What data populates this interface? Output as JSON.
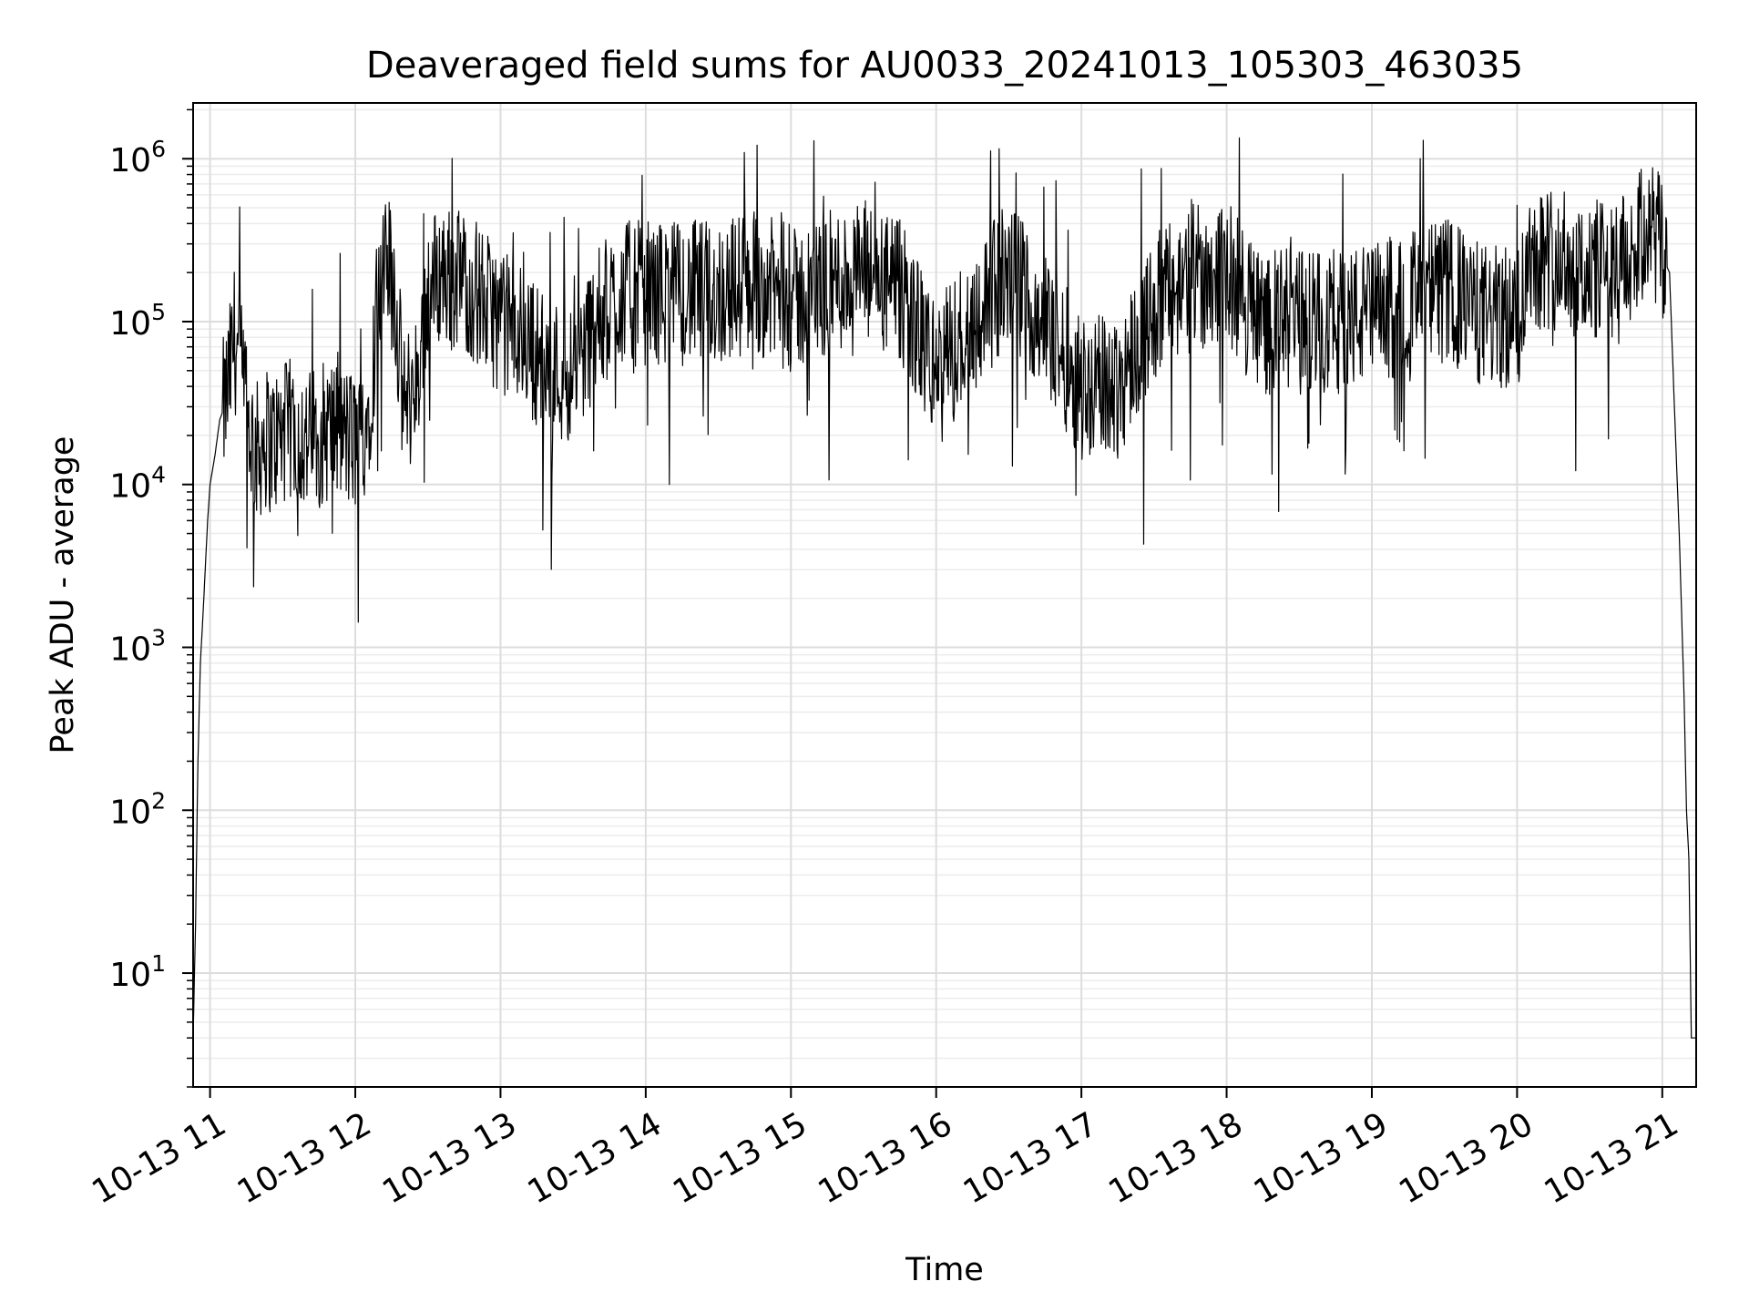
{
  "chart_data": {
    "type": "line",
    "title": "Deaveraged field sums for AU0033_20241013_105303_463035",
    "xlabel": "Time",
    "ylabel": "Peak ADU - average",
    "yscale": "log",
    "ylim": [
      2.0,
      2200000
    ],
    "xlim": [
      "2024-10-13 10:53",
      "2024-10-13 21:14"
    ],
    "xticks": [
      {
        "time": "2024-10-13 11:00",
        "label": "10-13 11"
      },
      {
        "time": "2024-10-13 12:00",
        "label": "10-13 12"
      },
      {
        "time": "2024-10-13 13:00",
        "label": "10-13 13"
      },
      {
        "time": "2024-10-13 14:00",
        "label": "10-13 14"
      },
      {
        "time": "2024-10-13 15:00",
        "label": "10-13 15"
      },
      {
        "time": "2024-10-13 16:00",
        "label": "10-13 16"
      },
      {
        "time": "2024-10-13 17:00",
        "label": "10-13 17"
      },
      {
        "time": "2024-10-13 18:00",
        "label": "10-13 18"
      },
      {
        "time": "2024-10-13 19:00",
        "label": "10-13 19"
      },
      {
        "time": "2024-10-13 20:00",
        "label": "10-13 20"
      },
      {
        "time": "2024-10-13 21:00",
        "label": "10-13 21"
      }
    ],
    "yticks": [
      {
        "value": 10,
        "base": "10",
        "exp": "1"
      },
      {
        "value": 100,
        "base": "10",
        "exp": "2"
      },
      {
        "value": 1000,
        "base": "10",
        "exp": "3"
      },
      {
        "value": 10000,
        "base": "10",
        "exp": "4"
      },
      {
        "value": 100000,
        "base": "10",
        "exp": "5"
      },
      {
        "value": 1000000,
        "base": "10",
        "exp": "6"
      }
    ],
    "grid": true,
    "line_color": "#000000",
    "series": [
      {
        "x": [
          "2024-10-13 10:53",
          "2024-10-13 10:54",
          "2024-10-13 10:55",
          "2024-10-13 10:56",
          "2024-10-13 10:57",
          "2024-10-13 10:58",
          "2024-10-13 10:59",
          "2024-10-13 11:00",
          "2024-10-13 11:02",
          "2024-10-13 11:04",
          "2024-10-13 11:06",
          "2024-10-13 11:08",
          "2024-10-13 11:10",
          "2024-10-13 11:12",
          "2024-10-13 11:15",
          "2024-10-13 11:18",
          "2024-10-13 11:20",
          "2024-10-13 11:22",
          "2024-10-13 11:25",
          "2024-10-13 11:30",
          "2024-10-13 11:35",
          "2024-10-13 11:40",
          "2024-10-13 11:45",
          "2024-10-13 11:50",
          "2024-10-13 11:55",
          "2024-10-13 12:00",
          "2024-10-13 12:05",
          "2024-10-13 12:10",
          "2024-10-13 12:15",
          "2024-10-13 12:20",
          "2024-10-13 12:25",
          "2024-10-13 12:30",
          "2024-10-13 12:35",
          "2024-10-13 12:40",
          "2024-10-13 12:45",
          "2024-10-13 12:50",
          "2024-10-13 12:55",
          "2024-10-13 13:00",
          "2024-10-13 13:10",
          "2024-10-13 13:20",
          "2024-10-13 13:30",
          "2024-10-13 13:40",
          "2024-10-13 13:50",
          "2024-10-13 14:00",
          "2024-10-13 14:15",
          "2024-10-13 14:30",
          "2024-10-13 14:45",
          "2024-10-13 15:00",
          "2024-10-13 15:15",
          "2024-10-13 15:30",
          "2024-10-13 15:45",
          "2024-10-13 16:00",
          "2024-10-13 16:15",
          "2024-10-13 16:30",
          "2024-10-13 16:45",
          "2024-10-13 17:00",
          "2024-10-13 17:15",
          "2024-10-13 17:30",
          "2024-10-13 17:45",
          "2024-10-13 18:00",
          "2024-10-13 18:15",
          "2024-10-13 18:30",
          "2024-10-13 18:45",
          "2024-10-13 19:00",
          "2024-10-13 19:15",
          "2024-10-13 19:30",
          "2024-10-13 19:45",
          "2024-10-13 20:00",
          "2024-10-13 20:05",
          "2024-10-13 20:15",
          "2024-10-13 20:30",
          "2024-10-13 20:45",
          "2024-10-13 20:55",
          "2024-10-13 21:00",
          "2024-10-13 21:03",
          "2024-10-13 21:05",
          "2024-10-13 21:07",
          "2024-10-13 21:09",
          "2024-10-13 21:10",
          "2024-10-13 21:11",
          "2024-10-13 21:12",
          "2024-10-13 21:14"
        ],
        "values": [
          4,
          20,
          200,
          800,
          1500,
          3000,
          6000,
          10000,
          15000,
          25000,
          30000,
          45000,
          80000,
          60000,
          25000,
          18000,
          15000,
          20000,
          18000,
          20000,
          22000,
          18000,
          20000,
          22000,
          20000,
          18000,
          25000,
          150000,
          250000,
          30000,
          40000,
          150000,
          200000,
          180000,
          180000,
          150000,
          120000,
          100000,
          80000,
          50000,
          50000,
          100000,
          150000,
          150000,
          150000,
          150000,
          180000,
          130000,
          170000,
          200000,
          150000,
          50000,
          100000,
          200000,
          100000,
          40000,
          40000,
          120000,
          200000,
          200000,
          100000,
          100000,
          100000,
          110000,
          130000,
          160000,
          110000,
          100000,
          250000,
          250000,
          200000,
          220000,
          400000,
          250000,
          200000,
          30000,
          5000,
          500,
          100,
          50,
          4,
          4
        ]
      }
    ]
  }
}
